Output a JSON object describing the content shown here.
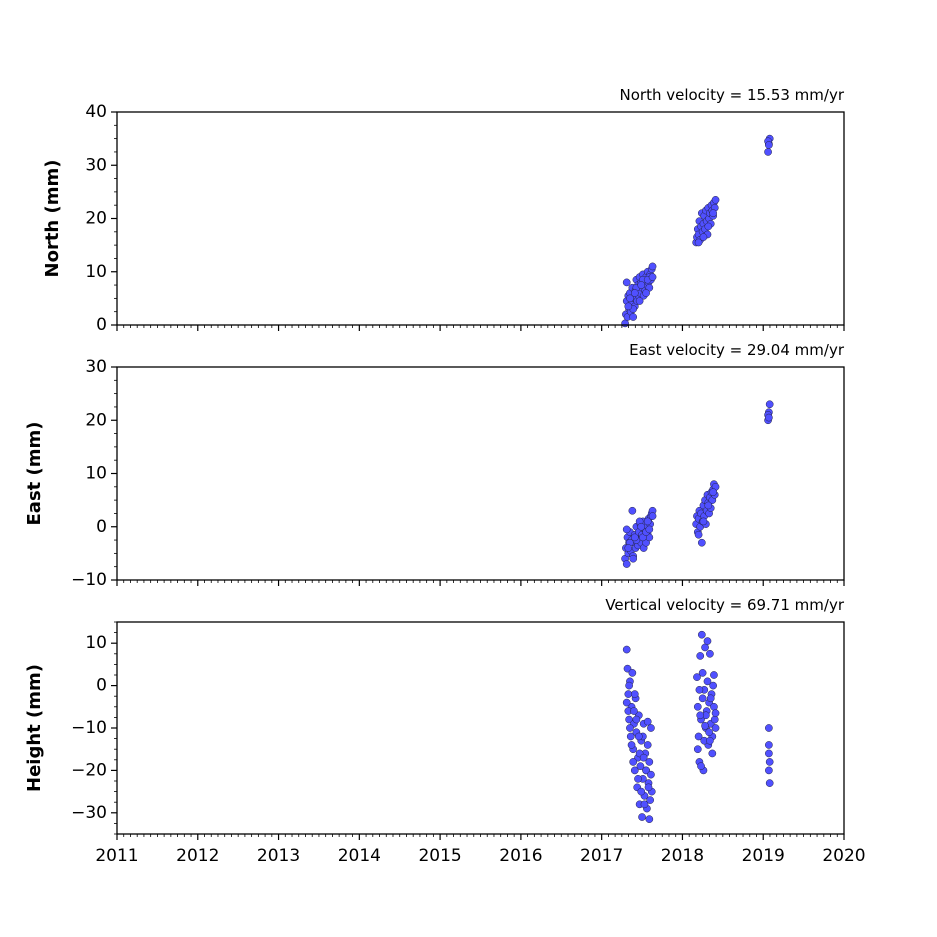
{
  "chart_data": {
    "type": "scatter",
    "marker_color": "#5050ff",
    "marker_edge_color": "#222244",
    "grid": false,
    "xlim": [
      2011,
      2020
    ],
    "x_ticks": [
      2011,
      2012,
      2013,
      2014,
      2015,
      2016,
      2017,
      2018,
      2019,
      2020
    ],
    "x_tick_labels": [
      "2011",
      "2012",
      "2013",
      "2014",
      "2015",
      "2016",
      "2017",
      "2018",
      "2019",
      "2020"
    ],
    "panels": [
      {
        "title": "North velocity = 15.53 mm/yr",
        "ylabel": "North (mm)",
        "ylim": [
          0,
          40
        ],
        "y_ticks": [
          0,
          10,
          20,
          30,
          40
        ],
        "y_tick_labels": [
          "0",
          "10",
          "20",
          "30",
          "40"
        ],
        "x": [
          2017.29,
          2017.3,
          2017.31,
          2017.32,
          2017.33,
          2017.34,
          2017.35,
          2017.36,
          2017.37,
          2017.38,
          2017.39,
          2017.4,
          2017.41,
          2017.42,
          2017.43,
          2017.44,
          2017.45,
          2017.46,
          2017.47,
          2017.48,
          2017.49,
          2017.5,
          2017.51,
          2017.52,
          2017.53,
          2017.54,
          2017.55,
          2017.56,
          2017.57,
          2017.58,
          2017.59,
          2017.6,
          2017.61,
          2017.62,
          2017.63,
          2017.31,
          2017.35,
          2017.39,
          2017.43,
          2017.47,
          2017.51,
          2017.55,
          2017.59,
          2017.33,
          2017.41,
          2017.49,
          2017.57,
          2017.63,
          2018.17,
          2018.18,
          2018.19,
          2018.2,
          2018.21,
          2018.22,
          2018.23,
          2018.24,
          2018.25,
          2018.26,
          2018.27,
          2018.28,
          2018.29,
          2018.3,
          2018.31,
          2018.32,
          2018.33,
          2018.34,
          2018.35,
          2018.36,
          2018.37,
          2018.38,
          2018.39,
          2018.4,
          2018.41,
          2018.2,
          2018.26,
          2018.32,
          2018.38,
          2019.06,
          2019.07,
          2019.08,
          2019.06,
          2019.07
        ],
        "y": [
          0.3,
          2.0,
          4.5,
          1.5,
          5.5,
          3.0,
          6.0,
          2.5,
          4.0,
          7.0,
          1.5,
          5.0,
          3.5,
          6.5,
          8.5,
          4.5,
          7.5,
          5.5,
          9.0,
          6.0,
          8.0,
          7.0,
          9.5,
          5.5,
          8.0,
          6.5,
          9.0,
          7.5,
          10.0,
          8.0,
          7.0,
          9.5,
          8.5,
          10.5,
          11.0,
          8.0,
          5.0,
          3.0,
          7.0,
          4.5,
          8.5,
          6.0,
          9.0,
          3.5,
          6.0,
          7.5,
          8.5,
          9.0,
          15.5,
          16.5,
          18.0,
          17.0,
          19.5,
          16.0,
          18.5,
          21.0,
          17.5,
          19.0,
          20.5,
          18.0,
          21.5,
          19.5,
          17.0,
          22.0,
          20.0,
          21.0,
          19.0,
          22.5,
          21.5,
          20.5,
          23.0,
          22.0,
          23.5,
          15.5,
          16.5,
          18.5,
          21.0,
          32.5,
          34.0,
          35.0,
          34.5,
          33.8
        ]
      },
      {
        "title": "East velocity = 29.04 mm/yr",
        "ylabel": "East (mm)",
        "ylim": [
          -10,
          30
        ],
        "y_ticks": [
          -10,
          0,
          10,
          20,
          30
        ],
        "y_tick_labels": [
          "−10",
          "0",
          "10",
          "20",
          "30"
        ],
        "x": [
          2017.29,
          2017.3,
          2017.31,
          2017.32,
          2017.33,
          2017.34,
          2017.35,
          2017.36,
          2017.37,
          2017.38,
          2017.39,
          2017.4,
          2017.41,
          2017.42,
          2017.43,
          2017.44,
          2017.45,
          2017.46,
          2017.47,
          2017.48,
          2017.49,
          2017.5,
          2017.51,
          2017.52,
          2017.53,
          2017.54,
          2017.55,
          2017.56,
          2017.57,
          2017.58,
          2017.59,
          2017.6,
          2017.61,
          2017.62,
          2017.63,
          2017.31,
          2017.35,
          2017.39,
          2017.43,
          2017.47,
          2017.51,
          2017.55,
          2017.59,
          2017.33,
          2017.41,
          2017.49,
          2017.57,
          2017.63,
          2018.17,
          2018.18,
          2018.19,
          2018.2,
          2018.21,
          2018.22,
          2018.23,
          2018.24,
          2018.25,
          2018.26,
          2018.27,
          2018.28,
          2018.29,
          2018.3,
          2018.31,
          2018.32,
          2018.33,
          2018.34,
          2018.35,
          2018.36,
          2018.37,
          2018.38,
          2018.39,
          2018.4,
          2018.41,
          2018.2,
          2018.26,
          2018.32,
          2018.38,
          2019.06,
          2019.07,
          2019.08,
          2019.06,
          2019.07
        ],
        "y": [
          -6.0,
          -4.0,
          -7.0,
          -2.0,
          -5.0,
          -3.0,
          -1.0,
          -4.5,
          -2.5,
          3.0,
          -5.5,
          -3.0,
          -1.5,
          -4.0,
          0.0,
          -2.0,
          -3.5,
          -1.0,
          -2.5,
          0.5,
          -3.0,
          -1.5,
          1.0,
          -4.0,
          -2.0,
          -0.5,
          -3.0,
          0.0,
          -1.5,
          1.5,
          -2.0,
          0.5,
          2.0,
          2.5,
          3.0,
          -0.5,
          -3.0,
          -6.0,
          -2.5,
          1.0,
          -2.0,
          -1.0,
          -0.5,
          -4.0,
          -2.0,
          0.0,
          1.0,
          2.0,
          0.5,
          2.0,
          -1.0,
          1.5,
          3.0,
          0.0,
          2.5,
          -3.0,
          1.0,
          4.0,
          2.0,
          5.0,
          0.5,
          3.0,
          6.0,
          4.5,
          2.5,
          5.5,
          3.5,
          6.5,
          5.0,
          7.0,
          8.0,
          6.0,
          7.5,
          -1.5,
          1.0,
          4.0,
          6.5,
          20.0,
          21.5,
          23.0,
          21.0,
          20.5
        ]
      },
      {
        "title": "Vertical velocity = 69.71 mm/yr",
        "ylabel": "Height (mm)",
        "ylim": [
          -35,
          15
        ],
        "y_ticks": [
          -30,
          -20,
          -10,
          0,
          10
        ],
        "y_tick_labels": [
          "−30",
          "−20",
          "−10",
          "0",
          "10"
        ],
        "x": [
          2017.31,
          2017.32,
          2017.33,
          2017.34,
          2017.35,
          2017.36,
          2017.37,
          2017.38,
          2017.39,
          2017.4,
          2017.41,
          2017.42,
          2017.43,
          2017.44,
          2017.45,
          2017.46,
          2017.47,
          2017.48,
          2017.49,
          2017.5,
          2017.51,
          2017.52,
          2017.53,
          2017.54,
          2017.55,
          2017.56,
          2017.57,
          2017.58,
          2017.59,
          2017.6,
          2017.61,
          2017.62,
          2017.31,
          2017.33,
          2017.35,
          2017.37,
          2017.39,
          2017.41,
          2017.43,
          2017.45,
          2017.47,
          2017.49,
          2017.51,
          2017.53,
          2017.55,
          2017.57,
          2017.59,
          2017.61,
          2017.34,
          2017.4,
          2017.46,
          2017.52,
          2017.58,
          2018.18,
          2018.19,
          2018.2,
          2018.21,
          2018.22,
          2018.23,
          2018.24,
          2018.25,
          2018.26,
          2018.27,
          2018.28,
          2018.29,
          2018.3,
          2018.31,
          2018.32,
          2018.33,
          2018.34,
          2018.35,
          2018.36,
          2018.37,
          2018.38,
          2018.39,
          2018.4,
          2018.41,
          2018.19,
          2018.21,
          2018.23,
          2018.25,
          2018.27,
          2018.29,
          2018.31,
          2018.33,
          2018.35,
          2018.37,
          2018.39,
          2018.41,
          2018.22,
          2018.28,
          2018.34,
          2019.07,
          2019.07,
          2019.07,
          2019.08,
          2019.07,
          2019.08
        ],
        "y": [
          8.5,
          4.0,
          -2.0,
          -8.0,
          1.0,
          -12.0,
          -5.0,
          3.0,
          -15.0,
          -9.0,
          -20.0,
          -3.0,
          -11.0,
          -24.0,
          -17.0,
          -7.0,
          -28.0,
          -19.0,
          -13.0,
          -31.0,
          -22.0,
          -9.0,
          -26.0,
          -16.0,
          -20.0,
          -29.0,
          -14.0,
          -23.0,
          -18.0,
          -27.0,
          -10.0,
          -25.0,
          -4.0,
          -6.0,
          -10.0,
          -14.0,
          -18.0,
          -2.0,
          -8.0,
          -22.0,
          -16.0,
          -25.0,
          -12.0,
          -28.0,
          -20.0,
          -8.5,
          -31.5,
          -21.0,
          0.0,
          -6.0,
          -12.0,
          -17.0,
          -24.0,
          2.0,
          -5.0,
          -12.0,
          -18.0,
          7.0,
          -8.0,
          12.0,
          -3.0,
          -20.0,
          -1.0,
          9.0,
          -10.0,
          -6.0,
          1.0,
          -14.0,
          -4.0,
          7.5,
          -9.0,
          -2.0,
          -12.0,
          0.0,
          -5.0,
          -8.0,
          -10.0,
          -15.0,
          -1.0,
          -19.0,
          3.0,
          -13.0,
          -7.0,
          10.5,
          -11.0,
          -3.0,
          -16.0,
          2.5,
          -6.5,
          -7.0,
          -9.5,
          -13.0,
          -10.0,
          -14.0,
          -16.0,
          -18.0,
          -20.0,
          -23.0
        ]
      }
    ]
  }
}
